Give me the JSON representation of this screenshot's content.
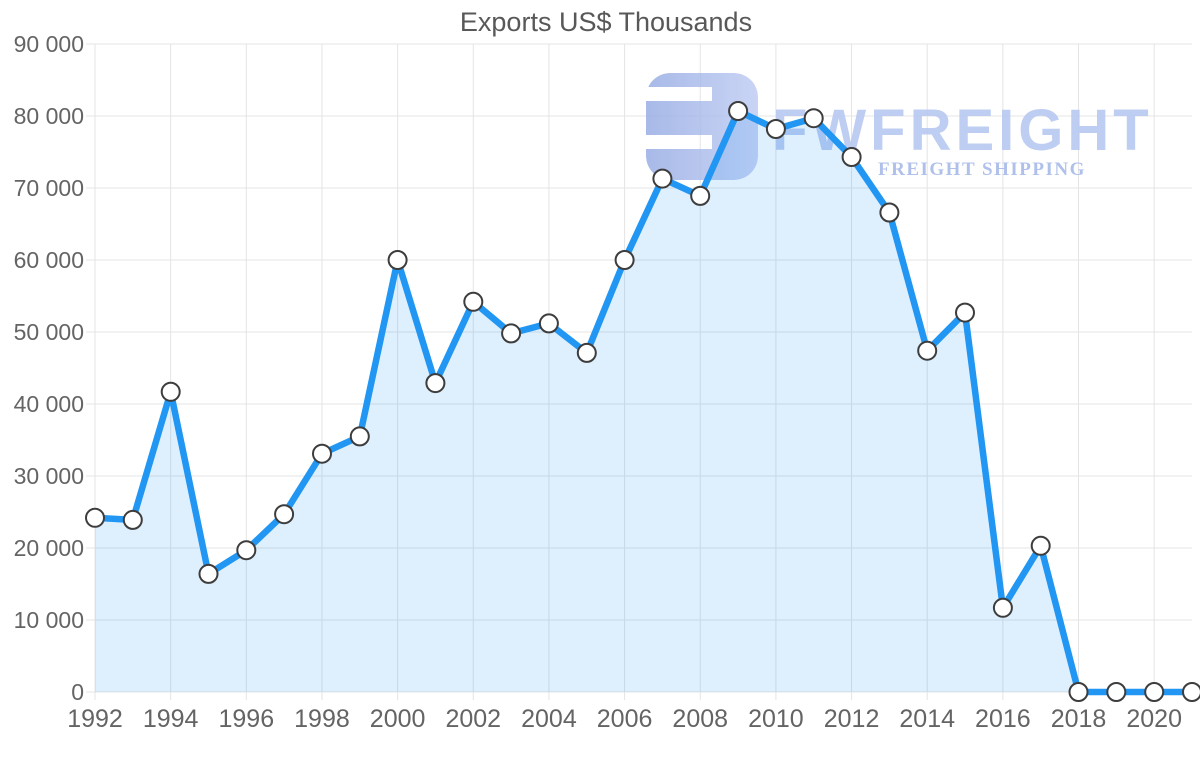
{
  "title": "Exports US$ Thousands",
  "watermark": {
    "brand": "FWFREIGHT",
    "tagline": "FREIGHT SHIPPING",
    "logo": "fwfreight-logo-mark"
  },
  "y_axis": {
    "tick_labels": [
      "0",
      "10 000",
      "20 000",
      "30 000",
      "40 000",
      "50 000",
      "60 000",
      "70 000",
      "80 000",
      "90 000"
    ]
  },
  "x_axis": {
    "tick_labels": [
      "1992",
      "1994",
      "1996",
      "1998",
      "2000",
      "2002",
      "2004",
      "2006",
      "2008",
      "2010",
      "2012",
      "2014",
      "2016",
      "2018",
      "2020"
    ]
  },
  "chart_data": {
    "type": "area",
    "title": "Exports US$ Thousands",
    "x": [
      1992,
      1993,
      1994,
      1995,
      1996,
      1997,
      1998,
      1999,
      2000,
      2001,
      2002,
      2003,
      2004,
      2005,
      2006,
      2007,
      2008,
      2009,
      2010,
      2011,
      2012,
      2013,
      2014,
      2015,
      2016,
      2017,
      2018,
      2019,
      2020,
      2021
    ],
    "series": [
      {
        "name": "Exports US$ Thousands",
        "values": [
          24200,
          23900,
          41700,
          16400,
          19700,
          24700,
          33100,
          35500,
          60000,
          42900,
          54200,
          49800,
          51200,
          47100,
          60000,
          71300,
          68900,
          80700,
          78200,
          79700,
          74300,
          66600,
          47400,
          52700,
          11700,
          20300,
          0,
          0,
          0,
          0
        ]
      }
    ],
    "ylim": [
      0,
      90000
    ],
    "ytick_step": 10000,
    "xtick_every_years": 2,
    "grid": true,
    "legend_position": "none",
    "marker": "circle",
    "colors": {
      "line": "#2196f3",
      "area_fill": "rgba(33,150,243,0.15)",
      "marker_fill": "#ffffff",
      "marker_stroke": "#3d3d3d",
      "grid": "#e4e4e4",
      "axis_text": "#646464",
      "title_text": "#58585a",
      "watermark_brand_text": "#b9c9f1",
      "watermark_tagline_text": "#a9bbe9",
      "watermark_logo_start": "#93a9e3",
      "watermark_logo_end": "#bdcaf3"
    }
  }
}
